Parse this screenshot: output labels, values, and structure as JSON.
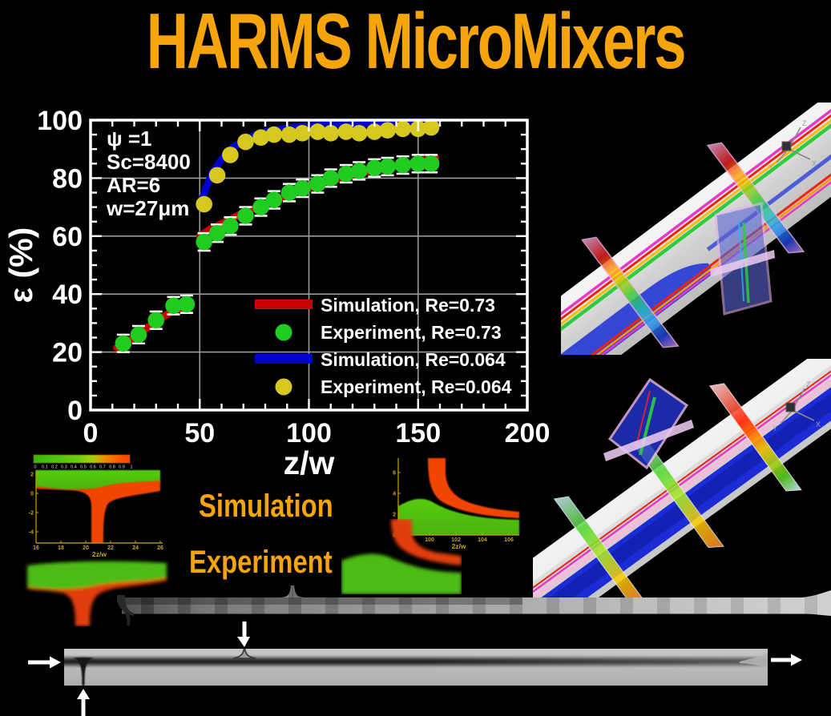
{
  "title": "HARMS MicroMixers",
  "theme": {
    "background": "#000000",
    "accent_orange": "#F5A40B",
    "text_white": "#FFFFFF",
    "inset_axis_yellow": "#C9A90A"
  },
  "chart_data": {
    "type": "scatter",
    "xlabel": "z/w",
    "ylabel": "ε (%)",
    "xlim": [
      0,
      200
    ],
    "ylim": [
      0,
      100
    ],
    "xticks": [
      0,
      50,
      100,
      150,
      200
    ],
    "yticks": [
      0,
      20,
      40,
      60,
      80,
      100
    ],
    "grid": true,
    "grid_color": "#9a9a9a",
    "frame_color": "#ffffff",
    "error_bar_color": "#ffffff",
    "legend_position": "lower right",
    "annotation_lines": [
      "ψ =1",
      "Sc=8400",
      "AR=6",
      "w=27μm"
    ],
    "series": [
      {
        "name": "Simulation, Re=0.73",
        "type": "line",
        "color": "#CC0000",
        "segments": [
          [
            [
              12,
              21.5
            ],
            [
              20,
              25
            ],
            [
              28,
              29.5
            ],
            [
              36,
              33.5
            ],
            [
              46,
              36.5
            ]
          ],
          [
            [
              50,
              60
            ],
            [
              55,
              62.5
            ],
            [
              62,
              65
            ],
            [
              70,
              68
            ],
            [
              80,
              71
            ],
            [
              90,
              74
            ],
            [
              100,
              76.5
            ],
            [
              110,
              79
            ],
            [
              120,
              81
            ],
            [
              130,
              82.8
            ],
            [
              140,
              84.3
            ],
            [
              150,
              85.7
            ],
            [
              158,
              87
            ]
          ]
        ]
      },
      {
        "name": "Experiment, Re=0.73",
        "type": "scatter",
        "color": "#1FCC1F",
        "marker": "circle",
        "yerr": 3,
        "points": [
          [
            15,
            23
          ],
          [
            22,
            26
          ],
          [
            30,
            31
          ],
          [
            38,
            36
          ],
          [
            44,
            36.5
          ],
          [
            52,
            58
          ],
          [
            58,
            61
          ],
          [
            64,
            63.5
          ],
          [
            71,
            67
          ],
          [
            78,
            70
          ],
          [
            84,
            72.5
          ],
          [
            91,
            75
          ],
          [
            97,
            76.5
          ],
          [
            104,
            78
          ],
          [
            110,
            80
          ],
          [
            117,
            81.5
          ],
          [
            123,
            82.5
          ],
          [
            130,
            83.5
          ],
          [
            136,
            84
          ],
          [
            143,
            84.5
          ],
          [
            150,
            85
          ],
          [
            156,
            85
          ]
        ]
      },
      {
        "name": "Simulation, Re=0.064",
        "type": "line",
        "color": "#0000CC",
        "segments": [
          [
            [
              50,
              70
            ],
            [
              53,
              77
            ],
            [
              56,
              82
            ],
            [
              60,
              86.5
            ],
            [
              65,
              90.5
            ],
            [
              70,
              93
            ],
            [
              75,
              94.8
            ],
            [
              80,
              96
            ],
            [
              90,
              97.3
            ],
            [
              100,
              98
            ],
            [
              110,
              98.4
            ],
            [
              120,
              98.7
            ],
            [
              130,
              99
            ],
            [
              140,
              99.2
            ],
            [
              150,
              99.4
            ],
            [
              158,
              99.5
            ]
          ]
        ]
      },
      {
        "name": "Experiment, Re=0.064",
        "type": "scatter",
        "color": "#D6C81E",
        "marker": "circle",
        "yerr": 1.5,
        "points": [
          [
            52,
            71
          ],
          [
            58,
            81
          ],
          [
            64,
            88
          ],
          [
            71,
            92.5
          ],
          [
            78,
            94
          ],
          [
            84,
            95
          ],
          [
            91,
            95
          ],
          [
            97,
            95.5
          ],
          [
            104,
            96
          ],
          [
            110,
            95.5
          ],
          [
            117,
            96
          ],
          [
            123,
            95.5
          ],
          [
            130,
            96
          ],
          [
            136,
            96.5
          ],
          [
            143,
            97
          ],
          [
            150,
            97
          ],
          [
            156,
            97.5
          ]
        ]
      }
    ]
  },
  "inset_simulation_1": {
    "type": "contour",
    "colorbar_ticks": [
      "0",
      "0.1",
      "0.2",
      "0.3",
      "0.4",
      "0.5",
      "0.6",
      "0.7",
      "0.8",
      "0.9",
      "1"
    ],
    "yticks": [
      2,
      0,
      -2,
      -4
    ],
    "xticks": [
      16,
      18,
      20,
      22,
      24,
      26
    ],
    "xlabel": "2z/w"
  },
  "inset_simulation_2": {
    "type": "contour",
    "yticks": [
      6,
      4,
      2,
      0
    ],
    "xticks": [
      98,
      100,
      102,
      104,
      106
    ],
    "xlabel": "2z/w"
  },
  "section_labels": {
    "simulation": "Simulation",
    "experiment": "Experiment"
  },
  "render_axes": {
    "x": "X",
    "y": "Y",
    "z": "Z"
  }
}
